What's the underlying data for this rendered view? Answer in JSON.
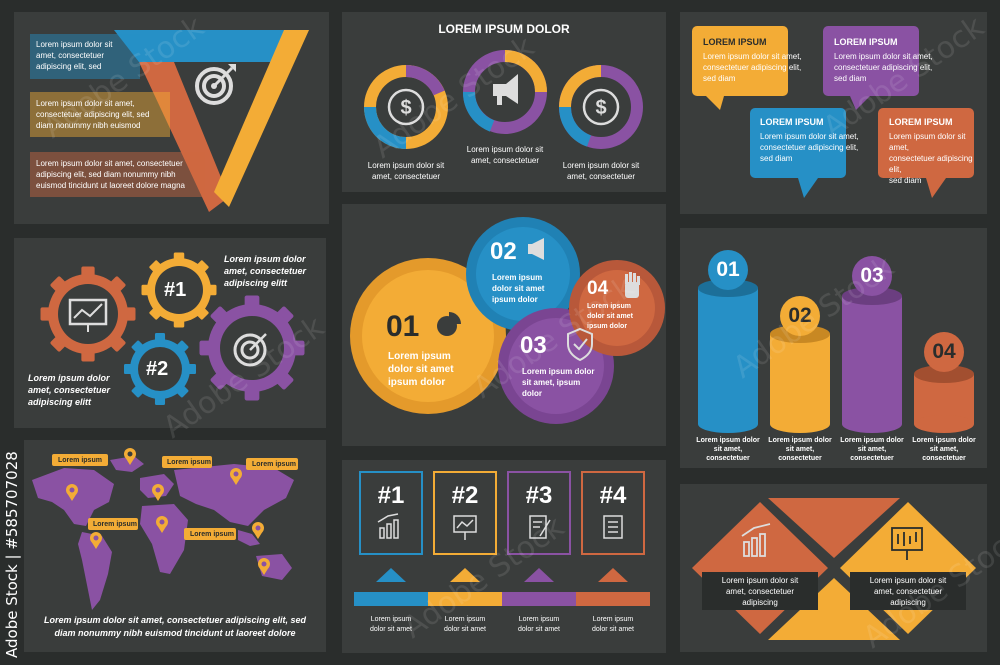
{
  "colors": {
    "bg": "#2a2d2c",
    "panel": "#3a3d3c",
    "yellow": "#f3ac36",
    "blue": "#2690c6",
    "purple": "#8a52a3",
    "orange": "#cf6841",
    "white": "#ffffff"
  },
  "watermark": {
    "side": "Adobe Stock | #585707028",
    "mark": "Adobe Stock"
  },
  "p1": {
    "rows": [
      {
        "lines": [
          "Lorem ipsum dolor sit",
          "amet, consectetuer",
          "adipiscing elit, sed"
        ]
      },
      {
        "lines": [
          "Lorem ipsum dolor sit amet,",
          "consectetuer adipiscing elit, sed",
          "diam nonummy nibh euismod"
        ]
      },
      {
        "lines": [
          "Lorem ipsum dolor sit amet, consectetuer",
          "adipiscing elit, sed diam nonummy nibh",
          "euismod tincidunt ut laoreet dolore magna"
        ]
      }
    ],
    "icon": "target-icon"
  },
  "p2": {
    "title": "LOREM IPSUM DOLOR",
    "donuts": [
      {
        "icon": "dollar-icon",
        "caption": [
          "Lorem ipsum dolor sit",
          "amet, consectetuer"
        ]
      },
      {
        "icon": "megaphone-icon",
        "caption": [
          "Lorem ipsum dolor sit",
          "amet, consectetuer"
        ]
      },
      {
        "icon": "dollar-icon",
        "caption": [
          "Lorem ipsum dolor sit",
          "amet, consectetuer"
        ]
      }
    ]
  },
  "p3": {
    "bubbles": [
      {
        "title": "LOREM IPSUM",
        "lines": [
          "Lorem ipsum dolor sit amet,",
          "consectetuer adipiscing elit,",
          "sed diam"
        ]
      },
      {
        "title": "LOREM IPSUM",
        "lines": [
          "Lorem ipsum dolor sit amet,",
          "consectetuer adipiscing elit,",
          "sed diam"
        ]
      },
      {
        "title": "LOREM IPSUM",
        "lines": [
          "Lorem ipsum dolor sit amet,",
          "consectetuer adipiscing elit,",
          "sed diam"
        ]
      },
      {
        "title": "LOREM IPSUM",
        "lines": [
          "Lorem ipsum dolor sit amet,",
          "consectetuer adipiscing elit,",
          "sed diam"
        ]
      }
    ]
  },
  "p4": {
    "gear1": "#1",
    "gear2": "#2",
    "text1": [
      "Lorem ipsum dolor",
      "amet, consectetuer",
      "adipiscing elitt"
    ],
    "text2": [
      "Lorem ipsum dolor",
      "amet, consectetuer",
      "adipiscing elitt"
    ]
  },
  "p5": {
    "circles": [
      {
        "num": "01",
        "lines": [
          "Lorem ipsum",
          "dolor sit amet",
          "ipsum dolor"
        ]
      },
      {
        "num": "02",
        "lines": [
          "Lorem ipsum",
          "dolor sit amet",
          "ipsum dolor"
        ]
      },
      {
        "num": "03",
        "lines": [
          "Lorem ipsum dolor",
          "sit amet, ipsum",
          "dolor"
        ]
      },
      {
        "num": "04",
        "lines": [
          "Lorem ipsum",
          "dolor sit amet",
          "ipsum dolor"
        ]
      }
    ]
  },
  "p6": {
    "cols": [
      {
        "num": "01",
        "lines": [
          "Lorem ipsum dolor",
          "sit amet,",
          "consectetuer"
        ]
      },
      {
        "num": "02",
        "lines": [
          "Lorem ipsum dolor",
          "sit amet,",
          "consectetuer"
        ]
      },
      {
        "num": "03",
        "lines": [
          "Lorem ipsum dolor",
          "sit amet,",
          "consectetuer"
        ]
      },
      {
        "num": "04",
        "lines": [
          "Lorem ipsum dolor",
          "sit amet,",
          "consectetuer"
        ]
      }
    ]
  },
  "p7": {
    "pins": [
      "Lorem ipsum",
      "Lorem ipsum",
      "Lorem ipsum",
      "Lorem ipsum",
      "Lorem ipsum"
    ],
    "caption": [
      "Lorem ipsum dolor sit amet, consectetuer adipiscing elit, sed",
      "diam nonummy nibh euismod tincidunt ut laoreet dolore"
    ]
  },
  "p8": {
    "items": [
      {
        "num": "#1",
        "caption": [
          "Lorem ipsum",
          "dolor sit amet"
        ]
      },
      {
        "num": "#2",
        "caption": [
          "Lorem ipsum",
          "dolor sit amet"
        ]
      },
      {
        "num": "#3",
        "caption": [
          "Lorem ipsum",
          "dolor sit amet"
        ]
      },
      {
        "num": "#4",
        "caption": [
          "Lorem ipsum",
          "dolor sit amet"
        ]
      }
    ]
  },
  "p9": {
    "left": [
      "Lorem ipsum dolor sit",
      "amet, consectetuer",
      "adipiscing"
    ],
    "right": [
      "Lorem ipsum dolor sit",
      "amet, consectetuer",
      "adipiscing"
    ]
  }
}
